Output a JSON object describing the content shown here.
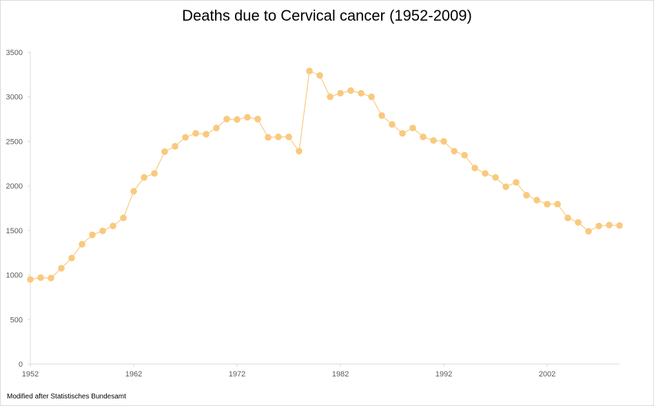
{
  "chart_data": {
    "type": "line",
    "title": "Deaths due to Cervical cancer (1952-2009)",
    "xlabel": "",
    "ylabel": "",
    "ylim": [
      0,
      3500
    ],
    "xlim": [
      1952,
      2009
    ],
    "yticks": [
      0,
      500,
      1000,
      1500,
      2000,
      2500,
      3000,
      3500
    ],
    "xticks": [
      1952,
      1962,
      1972,
      1982,
      1992,
      2002
    ],
    "grid": false,
    "color": "#f9c97e",
    "series": [
      {
        "x": [
          1952,
          1953,
          1954,
          1955,
          1956,
          1957,
          1958,
          1959,
          1960,
          1961,
          1962,
          1963,
          1964,
          1965,
          1966,
          1967,
          1968,
          1969,
          1970,
          1971,
          1972,
          1973,
          1974,
          1975,
          1976,
          1977,
          1978,
          1979,
          1980,
          1981,
          1982,
          1983,
          1984,
          1985,
          1986,
          1987,
          1988,
          1989,
          1990,
          1991,
          1992,
          1993,
          1994,
          1995,
          1996,
          1997,
          1998,
          1999,
          2000,
          2001,
          2002,
          2003,
          2004,
          2005,
          2006,
          2007,
          2008,
          2009
        ],
        "values": [
          950,
          970,
          965,
          1075,
          1190,
          1345,
          1450,
          1495,
          1550,
          1640,
          1940,
          2095,
          2140,
          2385,
          2445,
          2545,
          2590,
          2580,
          2650,
          2750,
          2745,
          2770,
          2750,
          2545,
          2550,
          2550,
          2390,
          3290,
          3240,
          3000,
          3040,
          3070,
          3040,
          3000,
          2790,
          2690,
          2590,
          2650,
          2550,
          2510,
          2500,
          2390,
          2345,
          2200,
          2140,
          2095,
          1990,
          2040,
          1895,
          1840,
          1795,
          1795,
          1640,
          1590,
          1490,
          1550,
          1560,
          1555
        ]
      }
    ]
  },
  "footer": {
    "source": "Modified after Statistisches Bundesamt"
  }
}
